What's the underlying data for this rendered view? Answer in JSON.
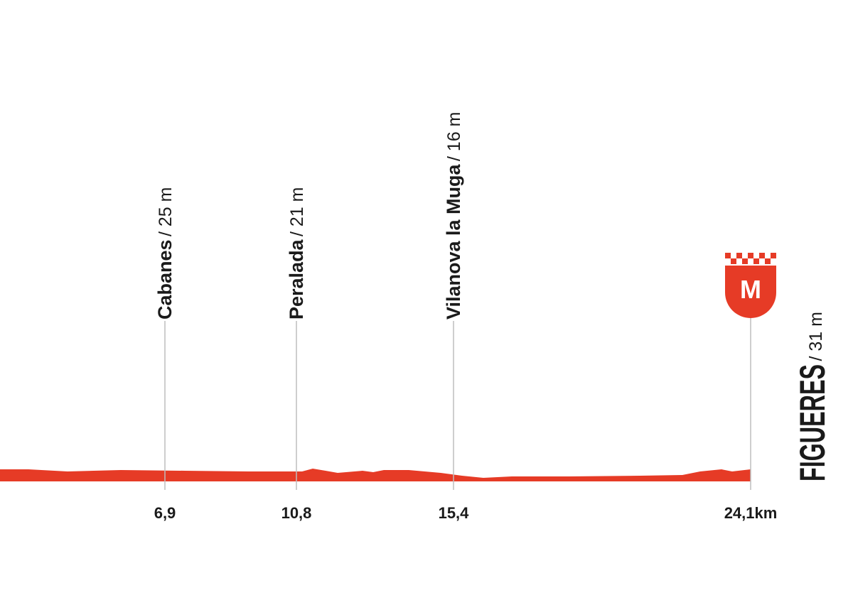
{
  "waypoints": [
    {
      "name": "Cabanes",
      "altitude": "/ 25 m",
      "km": "6,9"
    },
    {
      "name": "Peralada",
      "altitude": "/ 21 m",
      "km": "10,8"
    },
    {
      "name": "Vilanova la Muga",
      "altitude": "/ 16 m",
      "km": "15,4"
    }
  ],
  "finish": {
    "name": "FIGUERES",
    "altitude": "/ 31 m",
    "km": "24,1km",
    "icon": "M"
  }
}
